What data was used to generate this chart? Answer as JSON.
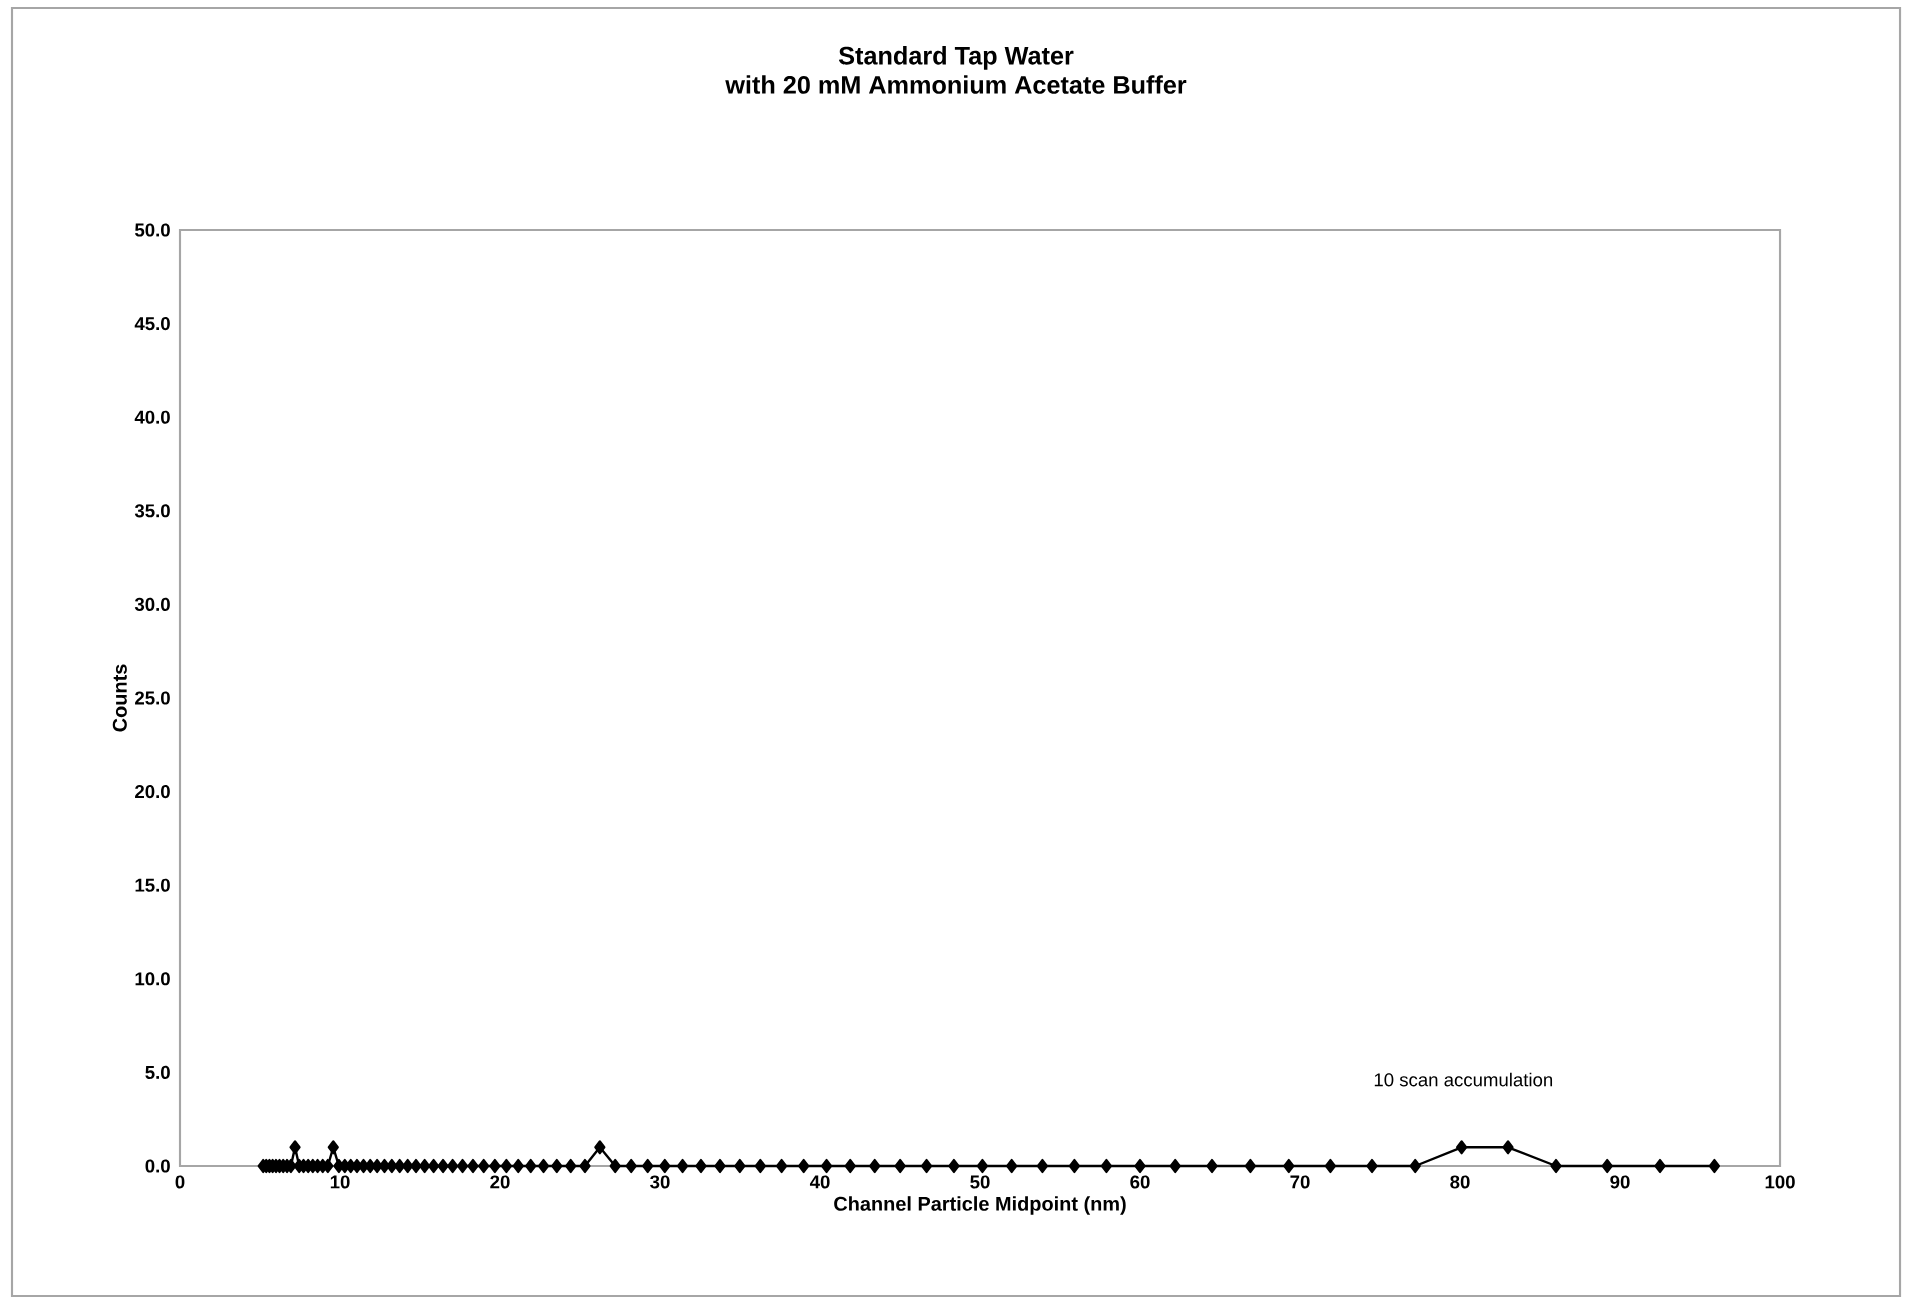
{
  "chart_data": {
    "type": "line",
    "title": "Standard Tap Water",
    "subtitle": "with 20 mM Ammonium Acetate Buffer",
    "xlabel": "Channel Particle Midpoint (nm)",
    "ylabel": "Counts",
    "x": [
      5.2,
      5.39,
      5.59,
      5.79,
      6.0,
      6.22,
      6.45,
      6.69,
      6.93,
      7.19,
      7.45,
      7.72,
      8.01,
      8.3,
      8.6,
      8.92,
      9.24,
      9.58,
      9.93,
      10.3,
      10.67,
      11.06,
      11.47,
      11.89,
      12.32,
      12.78,
      13.24,
      13.73,
      14.23,
      14.75,
      15.29,
      15.85,
      16.44,
      17.04,
      17.66,
      18.31,
      18.98,
      19.68,
      20.4,
      21.14,
      21.92,
      22.72,
      23.55,
      24.42,
      25.31,
      26.24,
      27.2,
      28.2,
      29.23,
      30.3,
      31.41,
      32.56,
      33.75,
      34.99,
      36.27,
      37.6,
      38.98,
      40.41,
      41.89,
      43.42,
      45.01,
      46.66,
      48.37,
      50.15,
      51.98,
      53.9,
      55.9,
      57.9,
      60.0,
      62.2,
      64.5,
      66.9,
      69.3,
      71.9,
      74.5,
      77.2,
      80.1,
      83.0,
      86.0,
      89.2,
      92.5,
      95.9
    ],
    "series": [
      {
        "color": "#000000",
        "values": [
          0,
          0,
          0,
          0,
          0,
          0,
          0,
          0,
          0,
          1,
          0,
          0,
          0,
          0,
          0,
          0,
          0,
          1,
          0,
          0,
          0,
          0,
          0,
          0,
          0,
          0,
          0,
          0,
          0,
          0,
          0,
          0,
          0,
          0,
          0,
          0,
          0,
          0,
          0,
          0,
          0,
          0,
          0,
          0,
          0,
          1,
          0,
          0,
          0,
          0,
          0,
          0,
          0,
          0,
          0,
          0,
          0,
          0,
          0,
          0,
          0,
          0,
          0,
          0,
          0,
          0,
          0,
          0,
          0,
          0,
          0,
          0,
          0,
          0,
          0,
          0,
          1,
          1,
          0,
          0,
          0,
          0
        ]
      }
    ],
    "xlim": [
      0,
      100
    ],
    "xticks": [
      0,
      10,
      20,
      30,
      40,
      50,
      60,
      70,
      80,
      90,
      100
    ],
    "ylim": [
      0,
      50
    ],
    "yticks": [
      {
        "value": 0,
        "label": "0.0"
      },
      {
        "value": 5,
        "label": "5.0"
      },
      {
        "value": 10,
        "label": "10.0"
      },
      {
        "value": 15,
        "label": "15.0"
      },
      {
        "value": 20,
        "label": "20.0"
      },
      {
        "value": 25,
        "label": "25.0"
      },
      {
        "value": 30,
        "label": "30.0"
      },
      {
        "value": 35,
        "label": "35.0"
      },
      {
        "value": 40,
        "label": "40.0"
      },
      {
        "value": 45,
        "label": "45.0"
      },
      {
        "value": 50,
        "label": "50.0"
      }
    ],
    "annotations": [
      "10 scan accumulation"
    ],
    "grid": false,
    "marker": "diamond",
    "line_style": "solid"
  }
}
